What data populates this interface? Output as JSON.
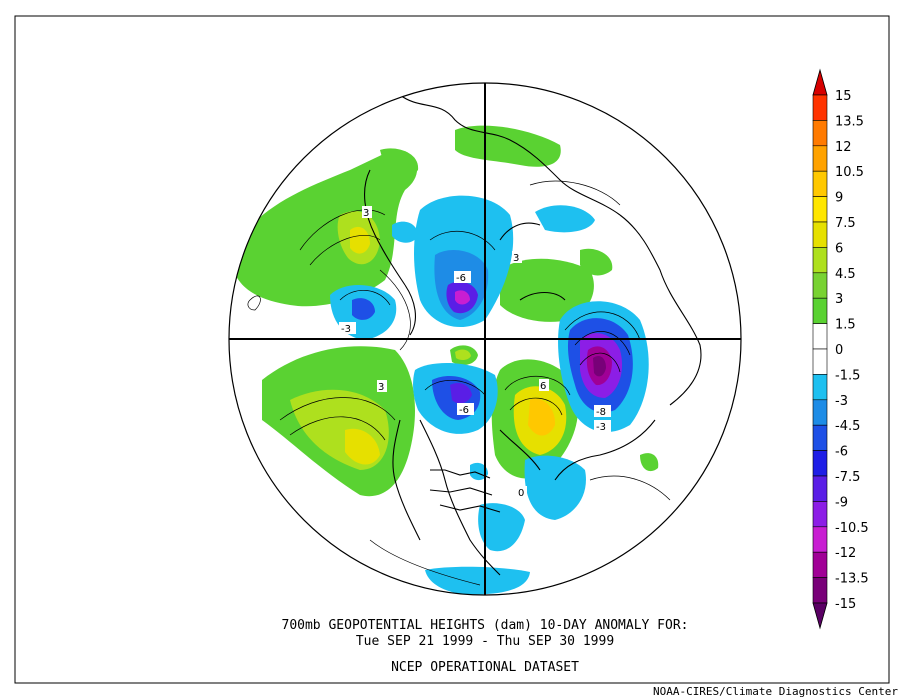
{
  "title": {
    "line1": "700mb GEOPOTENTIAL HEIGHTS (dam)   10-DAY ANOMALY FOR:",
    "line2": "Tue SEP 21 1999 - Thu SEP 30 1999",
    "line3": "NCEP OPERATIONAL DATASET"
  },
  "credit": "NOAA-CIRES/Climate Diagnostics Center",
  "colorbar": {
    "levels": [
      {
        "label": "15",
        "color": "#d60000"
      },
      {
        "label": "13.5",
        "color": "#ff3300"
      },
      {
        "label": "12",
        "color": "#ff7a00"
      },
      {
        "label": "10.5",
        "color": "#ffa200"
      },
      {
        "label": "9",
        "color": "#ffc800"
      },
      {
        "label": "7.5",
        "color": "#ffe600"
      },
      {
        "label": "6",
        "color": "#e6e000"
      },
      {
        "label": "4.5",
        "color": "#aee01e"
      },
      {
        "label": "3",
        "color": "#78d232"
      },
      {
        "label": "1.5",
        "color": "#5ad232"
      },
      {
        "label": "0",
        "color": "#ffffff"
      },
      {
        "label": "-1.5",
        "color": "#ffffff"
      },
      {
        "label": "-3",
        "color": "#1ec0f0"
      },
      {
        "label": "-4.5",
        "color": "#1e8ce6"
      },
      {
        "label": "-6",
        "color": "#1e50e6"
      },
      {
        "label": "-7.5",
        "color": "#1e1ee6"
      },
      {
        "label": "-9",
        "color": "#5a1ee6"
      },
      {
        "label": "-10.5",
        "color": "#8c1ee6"
      },
      {
        "label": "-12",
        "color": "#c81ed2"
      },
      {
        "label": "-13.5",
        "color": "#a00096"
      },
      {
        "label": "-15",
        "color": "#780078"
      }
    ],
    "top_arrow_color": "#d60000",
    "bottom_arrow_color": "#5a0064"
  },
  "contour_labels": [
    {
      "text": "-6",
      "lon_hint": "arctic-siberia"
    },
    {
      "text": "-3",
      "lon_hint": "east-asia"
    },
    {
      "text": "3",
      "lon_hint": "pacific"
    },
    {
      "text": "3",
      "lon_hint": "north-pacific"
    },
    {
      "text": "-6",
      "lon_hint": "hudson-bay"
    },
    {
      "text": "6",
      "lon_hint": "greenland"
    },
    {
      "text": "-8",
      "lon_hint": "europe"
    },
    {
      "text": "-3",
      "lon_hint": "europe-south"
    },
    {
      "text": "3",
      "lon_hint": "scandinavia"
    },
    {
      "text": "0",
      "lon_hint": "atlantic"
    }
  ]
}
